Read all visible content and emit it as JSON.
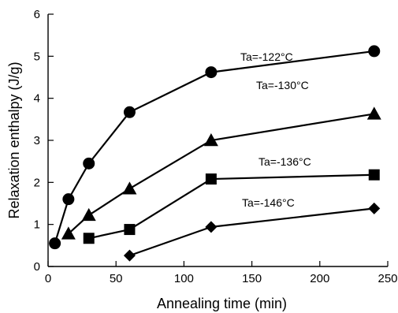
{
  "chart_data": {
    "type": "line",
    "title": "",
    "xlabel": "Annealing time (min)",
    "ylabel": "Relaxation enthalpy (J/g)",
    "xlim": [
      0,
      250
    ],
    "ylim": [
      0,
      6
    ],
    "xticks": [
      0,
      50,
      100,
      150,
      200,
      250
    ],
    "yticks": [
      0,
      1,
      2,
      3,
      4,
      5,
      6
    ],
    "grid": false,
    "legend": "none",
    "series": [
      {
        "name": "Ta=-122°C",
        "marker": "circle",
        "x": [
          5,
          15,
          30,
          60,
          120,
          240
        ],
        "y": [
          0.55,
          1.6,
          2.45,
          3.67,
          4.62,
          5.12
        ]
      },
      {
        "name": "Ta=-130°C",
        "marker": "triangle",
        "x": [
          15,
          30,
          60,
          120,
          240
        ],
        "y": [
          0.78,
          1.22,
          1.85,
          3.0,
          3.63
        ]
      },
      {
        "name": "Ta=-136°C",
        "marker": "square",
        "x": [
          30,
          60,
          120,
          240
        ],
        "y": [
          0.67,
          0.88,
          2.08,
          2.18
        ]
      },
      {
        "name": "Ta=-146°C",
        "marker": "diamond",
        "x": [
          60,
          120,
          240
        ],
        "y": [
          0.26,
          0.94,
          1.38
        ]
      }
    ]
  }
}
